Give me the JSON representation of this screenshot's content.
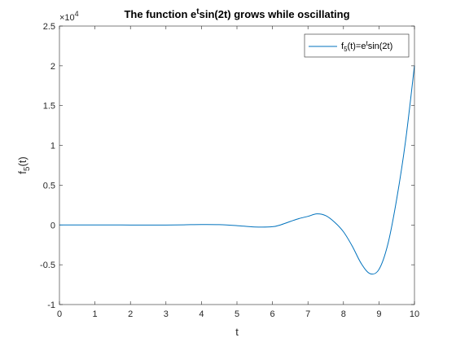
{
  "chart_data": {
    "type": "line",
    "title": {
      "prefix": "The function e",
      "superscript": "t",
      "suffix": "sin(2t) grows while oscillating"
    },
    "xlabel": "t",
    "ylabel": {
      "base": "f",
      "subscript": "5",
      "suffix": "(t)"
    },
    "xlim": [
      0,
      10
    ],
    "ylim": [
      -10000,
      25000
    ],
    "x_ticks": [
      0,
      1,
      2,
      3,
      4,
      5,
      6,
      7,
      8,
      9,
      10
    ],
    "x_tick_labels": [
      "0",
      "1",
      "2",
      "3",
      "4",
      "5",
      "6",
      "7",
      "8",
      "9",
      "10"
    ],
    "y_ticks": [
      -10000,
      -5000,
      0,
      5000,
      10000,
      15000,
      20000,
      25000
    ],
    "y_tick_labels": [
      "-1",
      "-0.5",
      "0",
      "0.5",
      "1",
      "1.5",
      "2",
      "2.5"
    ],
    "y_exponent": {
      "prefix": "×10",
      "power": "4"
    },
    "grid": false,
    "legend_position": "top-right",
    "series": [
      {
        "name": {
          "base": "f",
          "subscript": "5",
          "middle": "(t)=e",
          "superscript": "t",
          "suffix": "sin(2t)"
        },
        "color": "#0072BD",
        "x": [
          0,
          0.5,
          1,
          1.5,
          2,
          2.5,
          3,
          3.5,
          4,
          4.5,
          5,
          5.5,
          6,
          6.25,
          6.5,
          6.75,
          7,
          7.25,
          7.5,
          7.75,
          8,
          8.25,
          8.5,
          8.75,
          9,
          9.25,
          9.5,
          9.75,
          10
        ],
        "y": [
          0,
          1.4,
          2.5,
          0.6,
          -5.6,
          -11.7,
          -5.6,
          21.6,
          54.1,
          37.5,
          -80.7,
          -249,
          -216,
          46,
          437,
          813,
          1083,
          1393,
          1170,
          350,
          -855,
          -2680,
          -4840,
          -6120,
          -5590,
          -2420,
          3280,
          10590,
          20030
        ]
      }
    ]
  }
}
